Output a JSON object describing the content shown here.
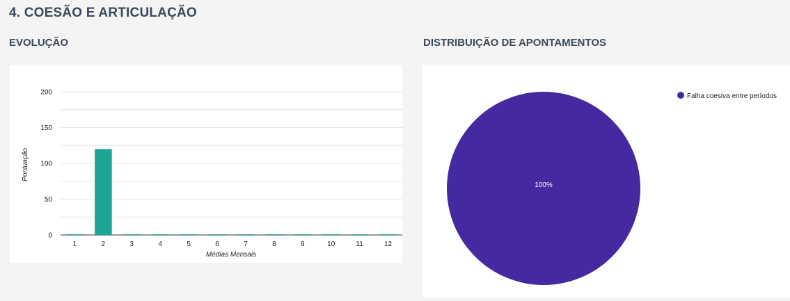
{
  "section": {
    "title": "4. COESÃO E ARTICULAÇÃO"
  },
  "evolution": {
    "title": "EVOLUÇÃO"
  },
  "distribution": {
    "title": "DISTRIBUIÇÃO DE APONTAMENTOS"
  },
  "colors": {
    "bar": "#1ea595",
    "pie": "#4529a0",
    "grid": "#e6e6e6",
    "axis": "#333333",
    "heading": "#3a4a5a"
  },
  "chart_data": [
    {
      "type": "bar",
      "categories": [
        "1",
        "2",
        "3",
        "4",
        "5",
        "6",
        "7",
        "8",
        "9",
        "10",
        "11",
        "12"
      ],
      "values": [
        0,
        120,
        0,
        0,
        0,
        0,
        0,
        0,
        0,
        0,
        0,
        0
      ],
      "xlabel": "Médias Mensais",
      "ylabel": "Pontuação",
      "ylim": [
        0,
        200
      ],
      "yticks": [
        "0",
        "50",
        "100",
        "150",
        "200"
      ],
      "grid": true
    },
    {
      "type": "pie",
      "slices": [
        {
          "name": "Falha coesiva entre períodos",
          "value": 100,
          "label": "100%"
        }
      ],
      "legend": "top-right"
    }
  ]
}
